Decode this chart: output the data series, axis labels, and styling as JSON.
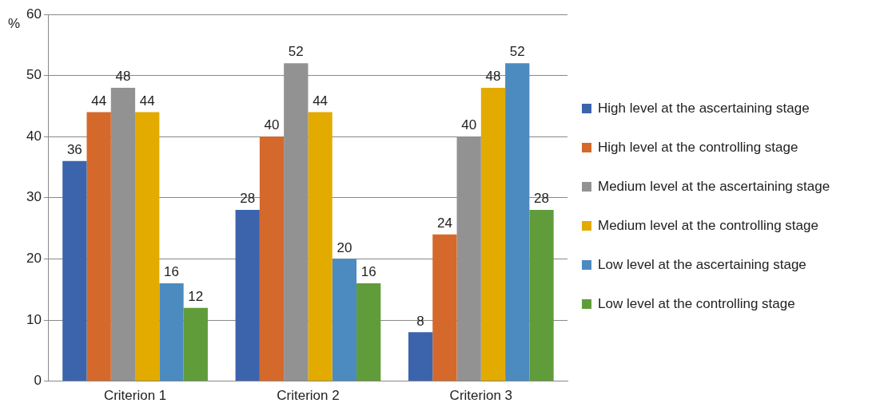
{
  "chart_data": {
    "type": "bar",
    "ylabel": "%",
    "categories": [
      "Criterion 1",
      "Criterion 2",
      "Criterion 3"
    ],
    "series": [
      {
        "name": "High level at the ascertaining stage",
        "color": "#3c64ad",
        "values": [
          36,
          28,
          8
        ]
      },
      {
        "name": "High level at the controlling stage",
        "color": "#d4692b",
        "values": [
          44,
          40,
          24
        ]
      },
      {
        "name": "Medium level at the ascertaining stage",
        "color": "#929292",
        "values": [
          48,
          52,
          40
        ]
      },
      {
        "name": "Medium level at the controlling stage",
        "color": "#e3aa00",
        "values": [
          44,
          44,
          48
        ]
      },
      {
        "name": "Low level at the ascertaining stage",
        "color": "#4b8bc0",
        "values": [
          16,
          20,
          52
        ]
      },
      {
        "name": "Low level at the controlling stage",
        "color": "#619c3b",
        "values": [
          12,
          16,
          28
        ]
      }
    ],
    "ylim": [
      0,
      60
    ],
    "yticks": [
      0,
      10,
      20,
      30,
      40,
      50,
      60
    ],
    "grid": "y",
    "legend": "right",
    "data_labels": true
  }
}
